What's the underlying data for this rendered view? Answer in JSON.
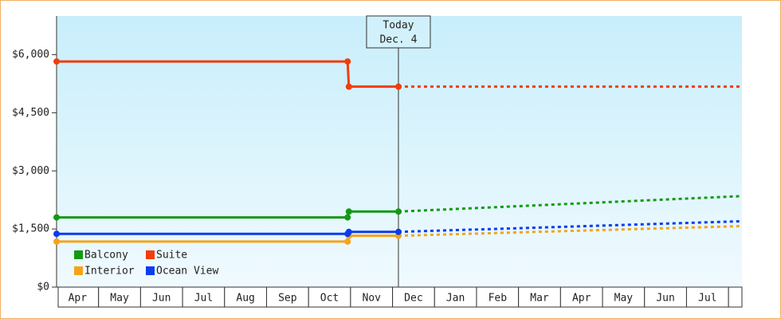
{
  "chart_data": {
    "type": "line",
    "ylim": [
      0,
      7000
    ],
    "yticks": [
      {
        "value": 0,
        "label": "$0"
      },
      {
        "value": 1500,
        "label": "$1,500"
      },
      {
        "value": 3000,
        "label": "$3,000"
      },
      {
        "value": 4500,
        "label": "$4,500"
      },
      {
        "value": 6000,
        "label": "$6,000"
      }
    ],
    "xlim": [
      0,
      16.32
    ],
    "xticks": [
      {
        "value": 0.5,
        "label": "Apr"
      },
      {
        "value": 1.5,
        "label": "May"
      },
      {
        "value": 2.5,
        "label": "Jun"
      },
      {
        "value": 3.5,
        "label": "Jul"
      },
      {
        "value": 4.5,
        "label": "Aug"
      },
      {
        "value": 5.5,
        "label": "Sep"
      },
      {
        "value": 6.5,
        "label": "Oct"
      },
      {
        "value": 7.5,
        "label": "Nov"
      },
      {
        "value": 8.5,
        "label": "Dec"
      },
      {
        "value": 9.5,
        "label": "Jan"
      },
      {
        "value": 10.5,
        "label": "Feb"
      },
      {
        "value": 11.5,
        "label": "Mar"
      },
      {
        "value": 12.5,
        "label": "Apr"
      },
      {
        "value": 13.5,
        "label": "May"
      },
      {
        "value": 14.5,
        "label": "Jun"
      },
      {
        "value": 15.5,
        "label": "Jul"
      }
    ],
    "annotation": {
      "x": 8.14,
      "lines": [
        "Today",
        "Dec. 4"
      ]
    },
    "legend": "lower-left",
    "series": [
      {
        "name": "Balcony",
        "color": "#139a13",
        "x": [
          0,
          6.93,
          6.96,
          8.14
        ],
        "values": [
          1800,
          1800,
          1950,
          1950
        ],
        "forecast_x": [
          8.14,
          16.32
        ],
        "forecast": [
          1950,
          2350
        ]
      },
      {
        "name": "Suite",
        "color": "#f23c0c",
        "x": [
          0,
          6.93,
          6.96,
          8.14
        ],
        "values": [
          5825,
          5825,
          5175,
          5175
        ],
        "forecast_x": [
          8.14,
          16.32
        ],
        "forecast": [
          5175,
          5175
        ]
      },
      {
        "name": "Interior",
        "color": "#f5a418",
        "x": [
          0,
          6.93,
          6.96,
          8.14
        ],
        "values": [
          1175,
          1175,
          1325,
          1325
        ],
        "forecast_x": [
          8.14,
          16.32
        ],
        "forecast": [
          1325,
          1575
        ]
      },
      {
        "name": "Ocean View",
        "color": "#0a3cf0",
        "x": [
          0,
          6.93,
          6.96,
          8.14
        ],
        "values": [
          1375,
          1375,
          1425,
          1425
        ],
        "forecast_x": [
          8.14,
          16.32
        ],
        "forecast": [
          1425,
          1700
        ]
      }
    ]
  }
}
